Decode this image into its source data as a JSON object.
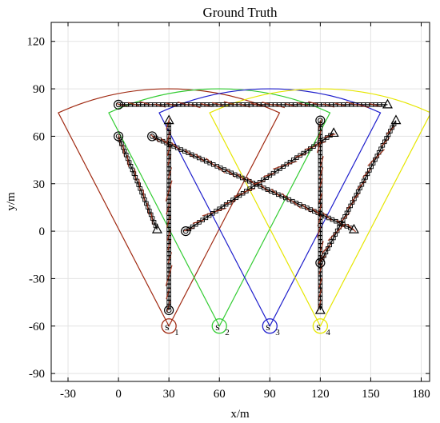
{
  "chart_data": {
    "type": "scatter",
    "title": "Ground Truth",
    "xlabel": "x/m",
    "ylabel": "y/m",
    "xlim": [
      -40,
      185
    ],
    "ylim": [
      -95,
      132
    ],
    "xticks": [
      -30,
      0,
      30,
      60,
      90,
      120,
      150,
      180
    ],
    "yticks": [
      -90,
      -60,
      -30,
      0,
      30,
      60,
      90,
      120
    ],
    "grid": true,
    "sensors": [
      {
        "label": "s",
        "index": "1",
        "x": 30,
        "y": -60,
        "color": "#a02a12"
      },
      {
        "label": "s",
        "index": "2",
        "x": 60,
        "y": -60,
        "color": "#33cc33"
      },
      {
        "label": "s",
        "index": "3",
        "x": 90,
        "y": -60,
        "color": "#1f1fcc"
      },
      {
        "label": "s",
        "index": "4",
        "x": 120,
        "y": -60,
        "color": "#e6e600"
      }
    ],
    "fov": {
      "range": 150,
      "half_angle_deg": 26
    },
    "tracks": [
      {
        "start": [
          0,
          80
        ],
        "end": [
          160,
          80
        ]
      },
      {
        "start": [
          0,
          60
        ],
        "end": [
          23,
          1
        ]
      },
      {
        "start": [
          20,
          60
        ],
        "end": [
          140,
          1
        ]
      },
      {
        "start": [
          30,
          -50
        ],
        "end": [
          30,
          70
        ]
      },
      {
        "start": [
          40,
          0
        ],
        "end": [
          128,
          62
        ]
      },
      {
        "start": [
          120,
          70
        ],
        "end": [
          120,
          -50
        ]
      },
      {
        "start": [
          120,
          -20
        ],
        "end": [
          165,
          70
        ]
      }
    ],
    "colors": {
      "marker": "#000000",
      "estimate": "#a02a12"
    }
  }
}
